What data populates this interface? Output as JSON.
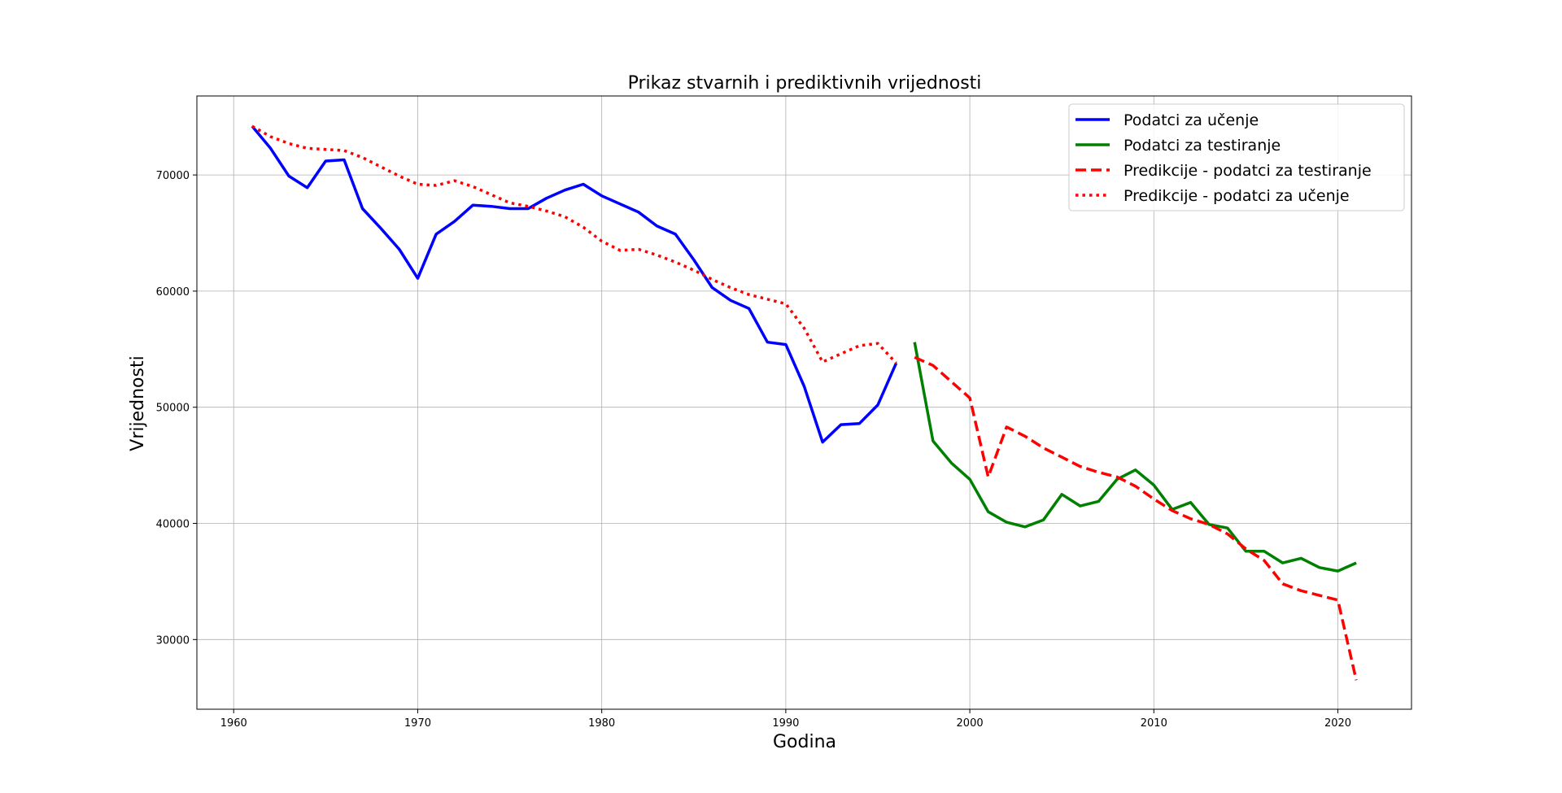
{
  "chart_data": {
    "type": "line",
    "title": "Prikaz stvarnih i prediktivnih vrijednosti",
    "xlabel": "Godina",
    "ylabel": "Vrijednosti",
    "xlim": [
      1958,
      2024
    ],
    "ylim": [
      24000,
      76800
    ],
    "xticks": [
      1960,
      1970,
      1980,
      1990,
      2000,
      2010,
      2020
    ],
    "yticks": [
      30000,
      40000,
      50000,
      60000,
      70000
    ],
    "grid": true,
    "legend_position": "top-right",
    "series": [
      {
        "name": "Podatci za učenje",
        "color": "#0000ff",
        "style": "solid",
        "x": [
          1961,
          1962,
          1963,
          1964,
          1965,
          1966,
          1967,
          1968,
          1969,
          1970,
          1971,
          1972,
          1973,
          1974,
          1975,
          1976,
          1977,
          1978,
          1979,
          1980,
          1981,
          1982,
          1983,
          1984,
          1985,
          1986,
          1987,
          1988,
          1989,
          1990,
          1991,
          1992,
          1993,
          1994,
          1995,
          1996
        ],
        "y": [
          74200,
          72300,
          69900,
          68900,
          71200,
          71300,
          67100,
          65400,
          63600,
          61100,
          64900,
          66000,
          67400,
          67300,
          67100,
          67100,
          68000,
          68700,
          69200,
          68200,
          67500,
          66800,
          65600,
          64900,
          62700,
          60300,
          59200,
          58500,
          55600,
          55400,
          51800,
          47000,
          48500,
          48600,
          50200,
          53800
        ]
      },
      {
        "name": "Podatci za testiranje",
        "color": "#008000",
        "style": "solid",
        "x": [
          1997,
          1998,
          1999,
          2000,
          2001,
          2002,
          2003,
          2004,
          2005,
          2006,
          2007,
          2008,
          2009,
          2010,
          2011,
          2012,
          2013,
          2014,
          2015,
          2016,
          2017,
          2018,
          2019,
          2020,
          2021
        ],
        "y": [
          55600,
          47100,
          45200,
          43800,
          41000,
          40100,
          39700,
          40300,
          42500,
          41500,
          41900,
          43800,
          44600,
          43300,
          41200,
          41800,
          39900,
          39600,
          37600,
          37600,
          36600,
          37000,
          36200,
          35900,
          36600
        ]
      },
      {
        "name": "Predikcije - podatci za testiranje",
        "color": "#ff0000",
        "style": "dashed",
        "x": [
          1997,
          1998,
          1999,
          2000,
          2001,
          2002,
          2003,
          2004,
          2005,
          2006,
          2007,
          2008,
          2009,
          2010,
          2011,
          2012,
          2013,
          2014,
          2015,
          2016,
          2017,
          2018,
          2019,
          2020,
          2021
        ],
        "y": [
          54300,
          53600,
          52200,
          50800,
          44000,
          48300,
          47500,
          46500,
          45700,
          44900,
          44400,
          44000,
          43200,
          42100,
          41100,
          40400,
          39900,
          39100,
          37800,
          36800,
          34800,
          34200,
          33800,
          33400,
          26500
        ]
      },
      {
        "name": "Predikcije - podatci za učenje",
        "color": "#ff0000",
        "style": "dotted",
        "x": [
          1961,
          1962,
          1963,
          1964,
          1965,
          1966,
          1967,
          1968,
          1969,
          1970,
          1971,
          1972,
          1973,
          1974,
          1975,
          1976,
          1977,
          1978,
          1979,
          1980,
          1981,
          1982,
          1983,
          1984,
          1985,
          1986,
          1987,
          1988,
          1989,
          1990,
          1991,
          1992,
          1993,
          1994,
          1995,
          1996
        ],
        "y": [
          74200,
          73300,
          72700,
          72300,
          72200,
          72100,
          71500,
          70700,
          69900,
          69200,
          69100,
          69500,
          69000,
          68300,
          67600,
          67300,
          66900,
          66400,
          65500,
          64300,
          63500,
          63600,
          63100,
          62500,
          61800,
          61000,
          60300,
          59700,
          59300,
          58900,
          56800,
          53900,
          54600,
          55300,
          55500,
          53800
        ]
      }
    ]
  }
}
